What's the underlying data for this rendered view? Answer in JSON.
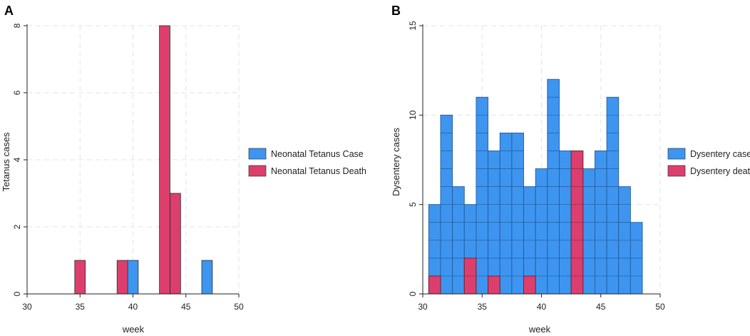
{
  "chart_data": [
    {
      "panel_label": "A",
      "type": "bar",
      "stacked_units": false,
      "xlabel": "week",
      "ylabel": "Tetanus cases",
      "xlim": [
        30,
        50
      ],
      "ylim": [
        0,
        8
      ],
      "xticks": [
        30,
        35,
        40,
        45,
        50
      ],
      "yticks": [
        0,
        2,
        4,
        6,
        8
      ],
      "grid": true,
      "legend_position": "right",
      "series": [
        {
          "name": "Neonatal Tetanus Case",
          "color": "#3d95f0",
          "bars": [
            {
              "x": 40,
              "value": 1
            },
            {
              "x": 47,
              "value": 1
            }
          ]
        },
        {
          "name": "Neonatal Tetanus Death",
          "color": "#dc3f6d",
          "bars": [
            {
              "x": 35,
              "value": 1
            },
            {
              "x": 39,
              "value": 1
            },
            {
              "x": 43,
              "value": 8
            },
            {
              "x": 44,
              "value": 3
            }
          ]
        }
      ]
    },
    {
      "panel_label": "B",
      "type": "bar",
      "stacked_units": true,
      "xlabel": "week",
      "ylabel": "Dysentery cases",
      "xlim": [
        30,
        50
      ],
      "ylim": [
        0,
        15
      ],
      "xticks": [
        30,
        35,
        40,
        45,
        50
      ],
      "yticks": [
        0,
        5,
        10,
        15
      ],
      "grid": true,
      "legend_position": "right",
      "bin_start": 30.5,
      "bin_width": 1,
      "series": [
        {
          "name": "Dysentery case",
          "color": "#3d95f0",
          "values": [
            5,
            10,
            6,
            5,
            11,
            8,
            9,
            9,
            6,
            7,
            12,
            8,
            8,
            7,
            8,
            11,
            6,
            4
          ]
        },
        {
          "name": "Dysentery death",
          "color": "#dc3f6d",
          "values": [
            1,
            0,
            0,
            2,
            0,
            1,
            0,
            0,
            1,
            0,
            0,
            0,
            8,
            0,
            0,
            0,
            0,
            0
          ]
        }
      ]
    }
  ]
}
